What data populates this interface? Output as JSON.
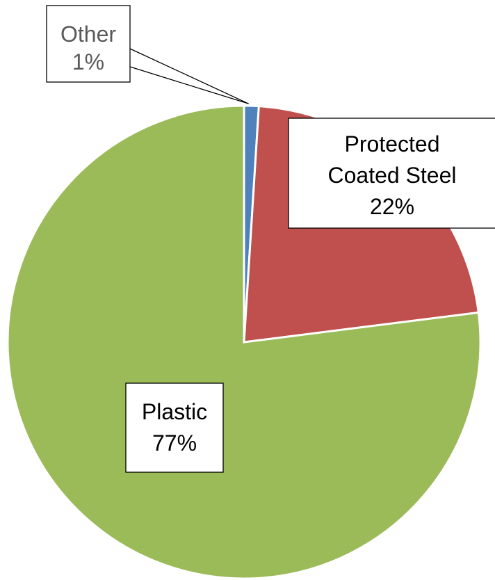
{
  "chart_data": {
    "type": "pie",
    "title": "",
    "slices": [
      {
        "name": "Other",
        "value": 1,
        "label": "1%",
        "color": "#4F81BD",
        "label_color": "#595959"
      },
      {
        "name": "Protected Coated Steel",
        "value": 22,
        "label": "22%",
        "color": "#C0504D",
        "label_color": "#000000"
      },
      {
        "name": "Plastic",
        "value": 77,
        "label": "77%",
        "color": "#9BBB59",
        "label_color": "#000000"
      }
    ],
    "label_lines": {
      "Other": [
        "Other",
        "1%"
      ],
      "Protected Coated Steel": [
        "Protected",
        "Coated Steel",
        "22%"
      ],
      "Plastic": [
        "Plastic",
        "77%"
      ]
    },
    "start_angle_deg": 0,
    "direction": "clockwise",
    "legend": "none"
  }
}
